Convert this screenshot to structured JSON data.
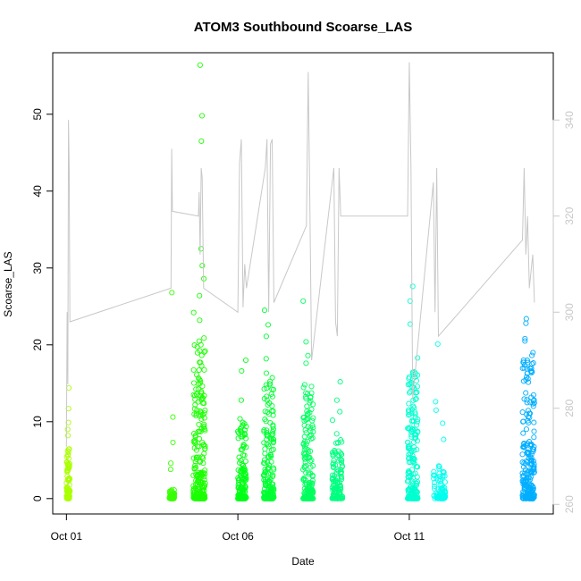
{
  "chart_data": {
    "type": "scatter",
    "title": "ATOM3 Southbound Scoarse_LAS",
    "xlabel": "Date",
    "ylabel": "Scoarse_LAS",
    "x_ticks": [
      "Oct 01",
      "Oct 06",
      "Oct 11"
    ],
    "x_tick_values": [
      1,
      6,
      11
    ],
    "xlim": [
      0.6,
      15.2
    ],
    "ylim": [
      -2,
      58
    ],
    "y_ticks": [
      0,
      10,
      20,
      30,
      40,
      50
    ],
    "y2_ticks": [
      260,
      280,
      300,
      320,
      340
    ],
    "y2lim": [
      258,
      354
    ],
    "grid": false,
    "point_color_scale": [
      "#99ff00",
      "#00aaff"
    ],
    "series": [
      {
        "type": "scatter",
        "note": "clusters of points; x in days of October, y in Scoarse_LAS units; min/max range + notable outliers",
        "clusters": [
          {
            "x_start": 1.0,
            "x_end": 1.1,
            "y_max": 6.5,
            "outliers": [
              14.4,
              11.7,
              9.9,
              9.0,
              8.2
            ]
          },
          {
            "x_start": 4.0,
            "x_end": 4.15,
            "y_max": 1.2,
            "outliers": [
              26.8,
              10.6,
              7.3,
              4.6,
              3.8
            ]
          },
          {
            "x_start": 4.7,
            "x_end": 5.05,
            "y_max": 21,
            "outliers": [
              56.4,
              49.8,
              46.5,
              32.5,
              30.3,
              28.6,
              26.4,
              24.2,
              23.2
            ]
          },
          {
            "x_start": 6.0,
            "x_end": 6.25,
            "y_max": 10.5,
            "outliers": [
              18.0,
              16.6,
              12.8
            ]
          },
          {
            "x_start": 6.75,
            "x_end": 7.05,
            "y_max": 16.5,
            "outliers": [
              24.5,
              22.6,
              21.1,
              18.2
            ]
          },
          {
            "x_start": 7.9,
            "x_end": 8.2,
            "y_max": 15,
            "outliers": [
              25.7,
              20.4,
              18.6,
              17.6
            ]
          },
          {
            "x_start": 8.75,
            "x_end": 9.05,
            "y_max": 8.5,
            "outliers": [
              15.2,
              12.8,
              11.3,
              10.2
            ]
          },
          {
            "x_start": 10.95,
            "x_end": 11.25,
            "y_max": 16.5,
            "outliers": [
              27.6,
              25.7,
              22.7,
              18.3
            ]
          },
          {
            "x_start": 11.7,
            "x_end": 12.05,
            "y_max": 4.5,
            "outliers": [
              20.1,
              12.6,
              11.5,
              9.8,
              7.7
            ]
          },
          {
            "x_start": 14.3,
            "x_end": 14.65,
            "y_max": 19,
            "outliers": [
              23.4,
              22.8,
              20.8,
              20.5
            ]
          }
        ]
      },
      {
        "type": "line",
        "axis": "right",
        "color": "#c8c8c8",
        "note": "secondary series on right axis, x in days, y in right-axis units",
        "points": [
          [
            1.0,
            272
          ],
          [
            1.02,
            300
          ],
          [
            1.04,
            285
          ],
          [
            1.06,
            340
          ],
          [
            1.08,
            330
          ],
          [
            1.1,
            298
          ],
          [
            4.05,
            305
          ],
          [
            4.07,
            334
          ],
          [
            4.09,
            321
          ],
          [
            4.85,
            320
          ],
          [
            4.87,
            325
          ],
          [
            4.9,
            312
          ],
          [
            4.93,
            330
          ],
          [
            4.96,
            328
          ],
          [
            5.0,
            305
          ],
          [
            6.0,
            300
          ],
          [
            6.05,
            331
          ],
          [
            6.1,
            336
          ],
          [
            6.15,
            301
          ],
          [
            6.2,
            310
          ],
          [
            6.25,
            305
          ],
          [
            6.8,
            330
          ],
          [
            6.85,
            336
          ],
          [
            6.9,
            300
          ],
          [
            6.95,
            335
          ],
          [
            7.0,
            336
          ],
          [
            7.05,
            302
          ],
          [
            8.0,
            318
          ],
          [
            8.05,
            350
          ],
          [
            8.1,
            322
          ],
          [
            8.15,
            290
          ],
          [
            8.8,
            330
          ],
          [
            8.85,
            298
          ],
          [
            8.9,
            295
          ],
          [
            8.95,
            330
          ],
          [
            9.0,
            320
          ],
          [
            10.95,
            320
          ],
          [
            11.0,
            352
          ],
          [
            11.05,
            330
          ],
          [
            11.1,
            282
          ],
          [
            11.7,
            327
          ],
          [
            11.75,
            300
          ],
          [
            11.8,
            330
          ],
          [
            11.85,
            295
          ],
          [
            14.3,
            315
          ],
          [
            14.35,
            330
          ],
          [
            14.4,
            312
          ],
          [
            14.45,
            320
          ],
          [
            14.5,
            305
          ],
          [
            14.6,
            312
          ],
          [
            14.65,
            302
          ]
        ]
      }
    ]
  }
}
